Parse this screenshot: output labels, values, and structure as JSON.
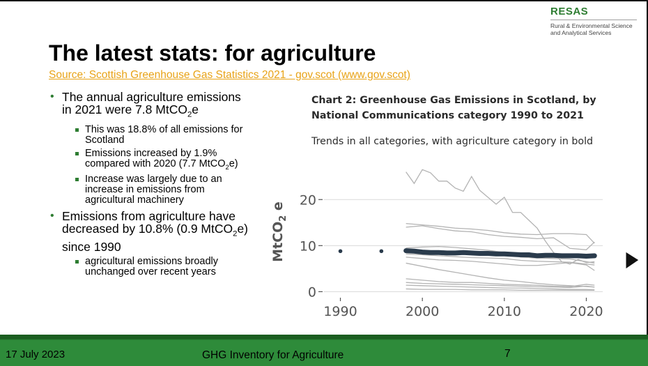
{
  "logo": {
    "name": "RESAS",
    "subtitle_line1": "Rural & Environmental Science",
    "subtitle_line2": "and Analytical Services"
  },
  "slide": {
    "title": "The latest stats: for agriculture",
    "source_link": "Source: Scottish Greenhouse Gas Statistics 2021 - gov.scot (www.gov.scot)"
  },
  "bullets": {
    "b1_text": "The annual agriculture emissions in 2021 were 7.8 MtCO",
    "b1_sub": "2",
    "b1_tail": "e",
    "b1a": "This was 18.8% of all emissions for Scotland",
    "b1b_text": "Emissions increased by 1.9% compared with 2020 (7.7 MtCO",
    "b1b_sub": "2",
    "b1b_tail": "e)",
    "b1c": "Increase was largely due to an increase in emissions from agricultural machinery",
    "b2_text": "Emissions from agriculture have decreased by 10.8% (0.9 MtCO",
    "b2_sub": "2",
    "b2_tail": "e) since 1990",
    "b2a": "agricultural emissions broadly unchanged over recent years"
  },
  "chart_data": {
    "type": "line",
    "title": "Chart 2: Greenhouse Gas Emissions in Scotland, by National Communications category 1990 to 2021",
    "subtitle": "Trends in all categories, with agriculture category in bold",
    "ylabel": "MtCO",
    "ylabel_sub": "2",
    "ylabel_tail": " e",
    "xlim": [
      1988,
      2022
    ],
    "ylim": [
      -1,
      27
    ],
    "xticks": [
      1990,
      2000,
      2010,
      2020
    ],
    "yticks": [
      0,
      10,
      20
    ],
    "grid": true,
    "colors": {
      "background_series": "#b3b3b3",
      "agriculture": "#2a3b4c",
      "grid": "#d9d9d9",
      "axis_text": "#555555"
    },
    "agriculture": {
      "x": [
        1990,
        1995,
        1998,
        1999,
        2000,
        2001,
        2002,
        2003,
        2004,
        2005,
        2006,
        2007,
        2008,
        2009,
        2010,
        2011,
        2012,
        2013,
        2014,
        2015,
        2016,
        2017,
        2018,
        2019,
        2020,
        2021
      ],
      "y": [
        8.8,
        8.8,
        8.9,
        8.8,
        8.6,
        8.5,
        8.5,
        8.4,
        8.4,
        8.5,
        8.4,
        8.3,
        8.3,
        8.2,
        8.2,
        8.1,
        8.0,
        8.0,
        7.8,
        7.9,
        7.9,
        7.8,
        7.8,
        7.8,
        7.7,
        7.8
      ]
    },
    "other_series": [
      {
        "x": [
          1998,
          1999,
          2000,
          2001,
          2002,
          2003,
          2004,
          2005,
          2006,
          2007,
          2008,
          2009,
          2010,
          2011,
          2012,
          2013,
          2014,
          2015,
          2016,
          2017,
          2018,
          2019,
          2020,
          2021
        ],
        "y": [
          26,
          23.5,
          26.5,
          25.8,
          24,
          24,
          22.5,
          21.8,
          25,
          22,
          20.5,
          19,
          20.5,
          17.2,
          17.2,
          15.5,
          13.8,
          11,
          8.5,
          6.5,
          6,
          7,
          6.3,
          6.5
        ]
      },
      {
        "x": [
          1998,
          2000,
          2002,
          2004,
          2006,
          2008,
          2010,
          2012,
          2014,
          2016,
          2018,
          2020,
          2021
        ],
        "y": [
          14.8,
          14.5,
          14.2,
          13.8,
          13.6,
          13.3,
          12.8,
          12.5,
          12.4,
          12.6,
          12.6,
          12.4,
          10.5
        ]
      },
      {
        "x": [
          1998,
          2000,
          2002,
          2004,
          2006,
          2008,
          2010,
          2012,
          2014,
          2016,
          2018,
          2020,
          2021
        ],
        "y": [
          14,
          14.3,
          13.7,
          13.2,
          13,
          12.4,
          12,
          11.8,
          11.5,
          11.7,
          9.4,
          9.1,
          10.8
        ]
      },
      {
        "x": [
          1998,
          2000,
          2002,
          2004,
          2006,
          2008,
          2010,
          2012,
          2014,
          2016,
          2018,
          2020,
          2021
        ],
        "y": [
          9.5,
          9.7,
          9.8,
          9.6,
          9.3,
          9,
          8.5,
          7.5,
          7.3,
          7.2,
          7.1,
          6.5,
          6.2
        ]
      },
      {
        "x": [
          1998,
          2000,
          2002,
          2004,
          2006,
          2008,
          2010,
          2012,
          2014,
          2016,
          2018,
          2020,
          2021
        ],
        "y": [
          8.2,
          8,
          7.8,
          7.6,
          7.4,
          7.3,
          7.2,
          6.8,
          6.6,
          6.5,
          6.4,
          6,
          5.8
        ]
      },
      {
        "x": [
          1998,
          2000,
          2002,
          2004,
          2006,
          2008,
          2010,
          2012,
          2014,
          2016,
          2018,
          2020,
          2021
        ],
        "y": [
          7.5,
          7.2,
          6.9,
          6.8,
          6.6,
          6.3,
          6,
          5.7,
          5.7,
          6,
          6.3,
          5.8,
          4.6
        ]
      },
      {
        "x": [
          1998,
          2000,
          2002,
          2004,
          2006,
          2008,
          2010,
          2012,
          2014,
          2016,
          2018,
          2020,
          2021
        ],
        "y": [
          6.2,
          5.5,
          4.8,
          4.2,
          3.6,
          3,
          2.5,
          2.2,
          1.8,
          1.5,
          1.3,
          1.1,
          1.0
        ]
      },
      {
        "x": [
          1998,
          2000,
          2002,
          2004,
          2006,
          2008,
          2010,
          2012,
          2014,
          2016,
          2018,
          2020,
          2021
        ],
        "y": [
          2.8,
          2.5,
          2.2,
          2,
          2,
          1.8,
          1.6,
          1.5,
          1.4,
          1.2,
          1.1,
          1.6,
          1.4
        ]
      },
      {
        "x": [
          1998,
          2000,
          2002,
          2004,
          2006,
          2008,
          2010,
          2012,
          2014,
          2016,
          2018,
          2020,
          2021
        ],
        "y": [
          2,
          1.8,
          1.7,
          1.6,
          1.5,
          1.4,
          1.3,
          1.2,
          1.1,
          1.0,
          0.9,
          1.2,
          1.0
        ]
      },
      {
        "x": [
          1998,
          2000,
          2002,
          2004,
          2006,
          2008,
          2010,
          2012,
          2014,
          2016,
          2018,
          2020,
          2021
        ],
        "y": [
          1.4,
          1.3,
          1.2,
          1.1,
          1.0,
          0.9,
          0.8,
          0.8,
          0.7,
          0.6,
          0.5,
          0.5,
          0.4
        ]
      },
      {
        "x": [
          1998,
          2000,
          2002,
          2004,
          2006,
          2008,
          2010,
          2012,
          2014,
          2016,
          2018,
          2020,
          2021
        ],
        "y": [
          0.6,
          0.5,
          0.5,
          0.5,
          0.4,
          0.4,
          0.4,
          0.3,
          0.3,
          0.3,
          0.3,
          0.3,
          0.3
        ]
      }
    ]
  },
  "footer": {
    "date": "17 July 2023",
    "title": "GHG Inventory for Agriculture",
    "page_number": "7"
  }
}
